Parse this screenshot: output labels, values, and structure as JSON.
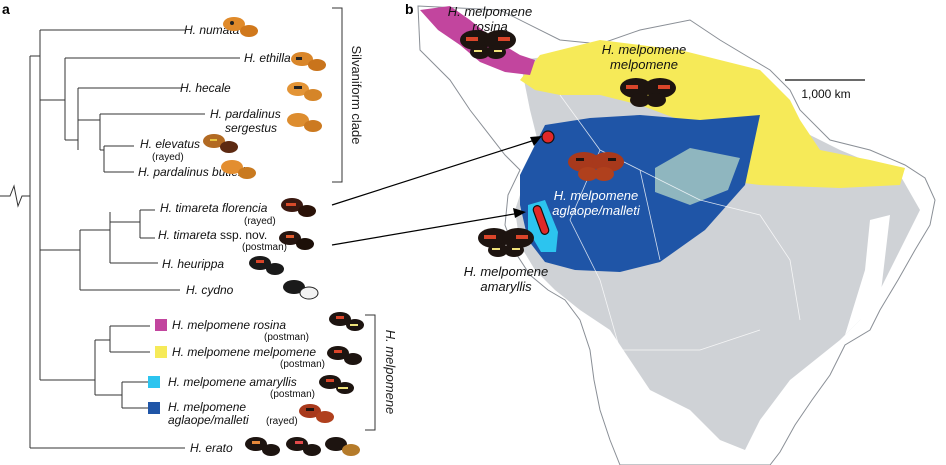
{
  "panels": {
    "a": "a",
    "b": "b"
  },
  "colors": {
    "rosina": "#c2459e",
    "melpomene": "#f6ea58",
    "amaryllis": "#2cc4ef",
    "aglaope": "#1f55a7",
    "range_grey": "#cfd2d6",
    "overlap_teal": "#8fb6bf"
  },
  "tree": {
    "taxa": [
      {
        "label": "H. numata"
      },
      {
        "label": "H. ethilla"
      },
      {
        "label": "H. hecale"
      },
      {
        "label": "H. pardalinus",
        "label2": "sergestus"
      },
      {
        "label": "H. elevatus",
        "note": "(rayed)"
      },
      {
        "label": "H. pardalinus butleri"
      },
      {
        "label": "H. timareta florencia",
        "note": "(rayed)"
      },
      {
        "label": "H. timareta",
        "label_upright": "ssp. nov.",
        "note": "(postman)"
      },
      {
        "label": "H. heurippa"
      },
      {
        "label": "H. cydno"
      },
      {
        "label": "H. melpomene rosina",
        "note": "(postman)",
        "swatch": "rosina"
      },
      {
        "label": "H. melpomene melpomene",
        "note": "(postman)",
        "swatch": "melpomene"
      },
      {
        "label": "H. melpomene amaryllis",
        "note": "(postman)",
        "swatch": "amaryllis"
      },
      {
        "label": "H. melpomene",
        "label2": "aglaope/malleti",
        "note": "(rayed)",
        "swatch": "aglaope"
      },
      {
        "label": "H. erato"
      }
    ],
    "clades": {
      "silvaniform": "Silvaniform clade",
      "melpomene": "H. melpomene"
    }
  },
  "map": {
    "labels": {
      "rosina": {
        "line1": "H. melpomene",
        "line2": "rosina"
      },
      "melpomene": {
        "line1": "H. melpomene",
        "line2": "melpomene"
      },
      "aglaope": {
        "line1": "H. melpomene",
        "line2": "aglaope/malleti"
      },
      "amaryllis": {
        "line1": "H. melpomene",
        "line2": "amaryllis"
      }
    },
    "scale_bar": "1,000 km"
  }
}
